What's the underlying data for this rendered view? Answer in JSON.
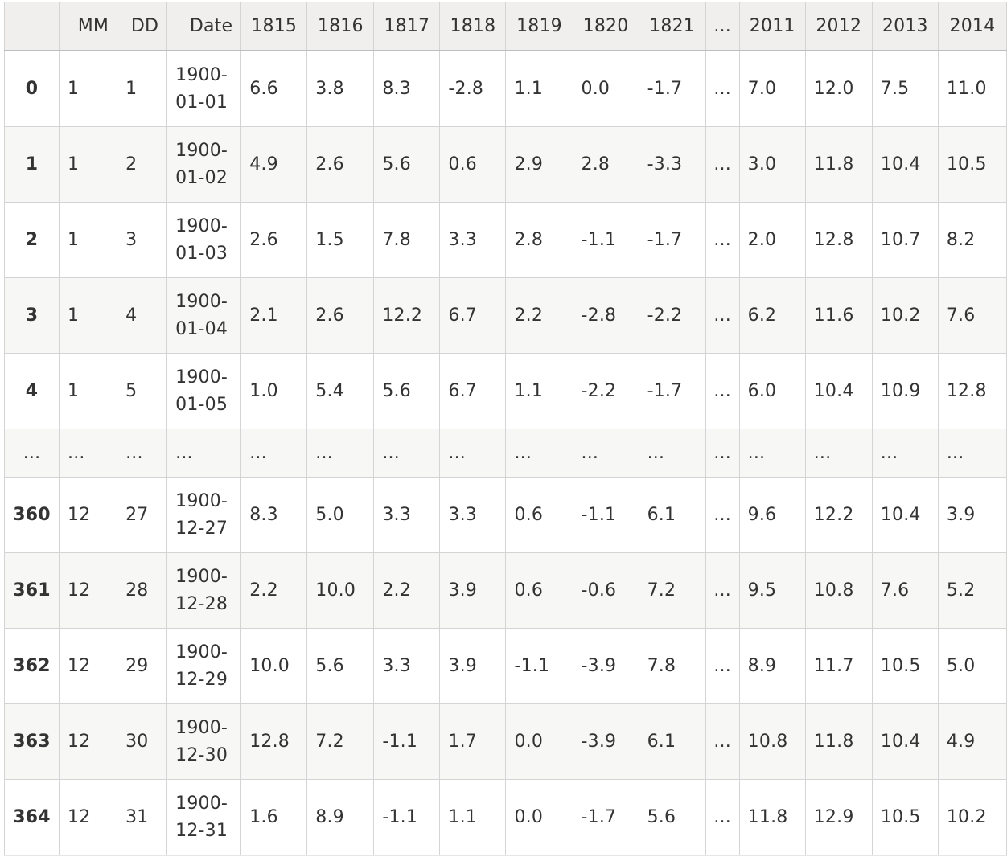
{
  "table": {
    "headers": [
      "",
      "MM",
      "DD",
      "Date",
      "1815",
      "1816",
      "1817",
      "1818",
      "1819",
      "1820",
      "1821",
      "...",
      "2011",
      "2012",
      "2013",
      "2014"
    ],
    "rows": [
      {
        "index": "0",
        "cells": [
          "1",
          "1",
          "1900-01-01",
          "6.6",
          "3.8",
          "8.3",
          "-2.8",
          "1.1",
          "0.0",
          "-1.7",
          "...",
          "7.0",
          "12.0",
          "7.5",
          "11.0"
        ]
      },
      {
        "index": "1",
        "cells": [
          "1",
          "2",
          "1900-01-02",
          "4.9",
          "2.6",
          "5.6",
          "0.6",
          "2.9",
          "2.8",
          "-3.3",
          "...",
          "3.0",
          "11.8",
          "10.4",
          "10.5"
        ]
      },
      {
        "index": "2",
        "cells": [
          "1",
          "3",
          "1900-01-03",
          "2.6",
          "1.5",
          "7.8",
          "3.3",
          "2.8",
          "-1.1",
          "-1.7",
          "...",
          "2.0",
          "12.8",
          "10.7",
          "8.2"
        ]
      },
      {
        "index": "3",
        "cells": [
          "1",
          "4",
          "1900-01-04",
          "2.1",
          "2.6",
          "12.2",
          "6.7",
          "2.2",
          "-2.8",
          "-2.2",
          "...",
          "6.2",
          "11.6",
          "10.2",
          "7.6"
        ]
      },
      {
        "index": "4",
        "cells": [
          "1",
          "5",
          "1900-01-05",
          "1.0",
          "5.4",
          "5.6",
          "6.7",
          "1.1",
          "-2.2",
          "-1.7",
          "...",
          "6.0",
          "10.4",
          "10.9",
          "12.8"
        ]
      },
      {
        "index": "...",
        "cells": [
          "...",
          "...",
          "...",
          "...",
          "...",
          "...",
          "...",
          "...",
          "...",
          "...",
          "...",
          "...",
          "...",
          "...",
          "..."
        ]
      },
      {
        "index": "360",
        "cells": [
          "12",
          "27",
          "1900-12-27",
          "8.3",
          "5.0",
          "3.3",
          "3.3",
          "0.6",
          "-1.1",
          "6.1",
          "...",
          "9.6",
          "12.2",
          "10.4",
          "3.9"
        ]
      },
      {
        "index": "361",
        "cells": [
          "12",
          "28",
          "1900-12-28",
          "2.2",
          "10.0",
          "2.2",
          "3.9",
          "0.6",
          "-0.6",
          "7.2",
          "...",
          "9.5",
          "10.8",
          "7.6",
          "5.2"
        ]
      },
      {
        "index": "362",
        "cells": [
          "12",
          "29",
          "1900-12-29",
          "10.0",
          "5.6",
          "3.3",
          "3.9",
          "-1.1",
          "-3.9",
          "7.8",
          "...",
          "8.9",
          "11.7",
          "10.5",
          "5.0"
        ]
      },
      {
        "index": "363",
        "cells": [
          "12",
          "30",
          "1900-12-30",
          "12.8",
          "7.2",
          "-1.1",
          "1.7",
          "0.0",
          "-3.9",
          "6.1",
          "...",
          "10.8",
          "11.8",
          "10.4",
          "4.9"
        ]
      },
      {
        "index": "364",
        "cells": [
          "12",
          "31",
          "1900-12-31",
          "1.6",
          "8.9",
          "-1.1",
          "1.1",
          "0.0",
          "-1.7",
          "5.6",
          "...",
          "11.8",
          "12.9",
          "10.5",
          "10.2"
        ]
      }
    ]
  },
  "colors": {
    "header_bg": "#f0efed",
    "stripe_bg": "#f7f7f6",
    "border": "#d4d4d4",
    "text": "#333333"
  }
}
